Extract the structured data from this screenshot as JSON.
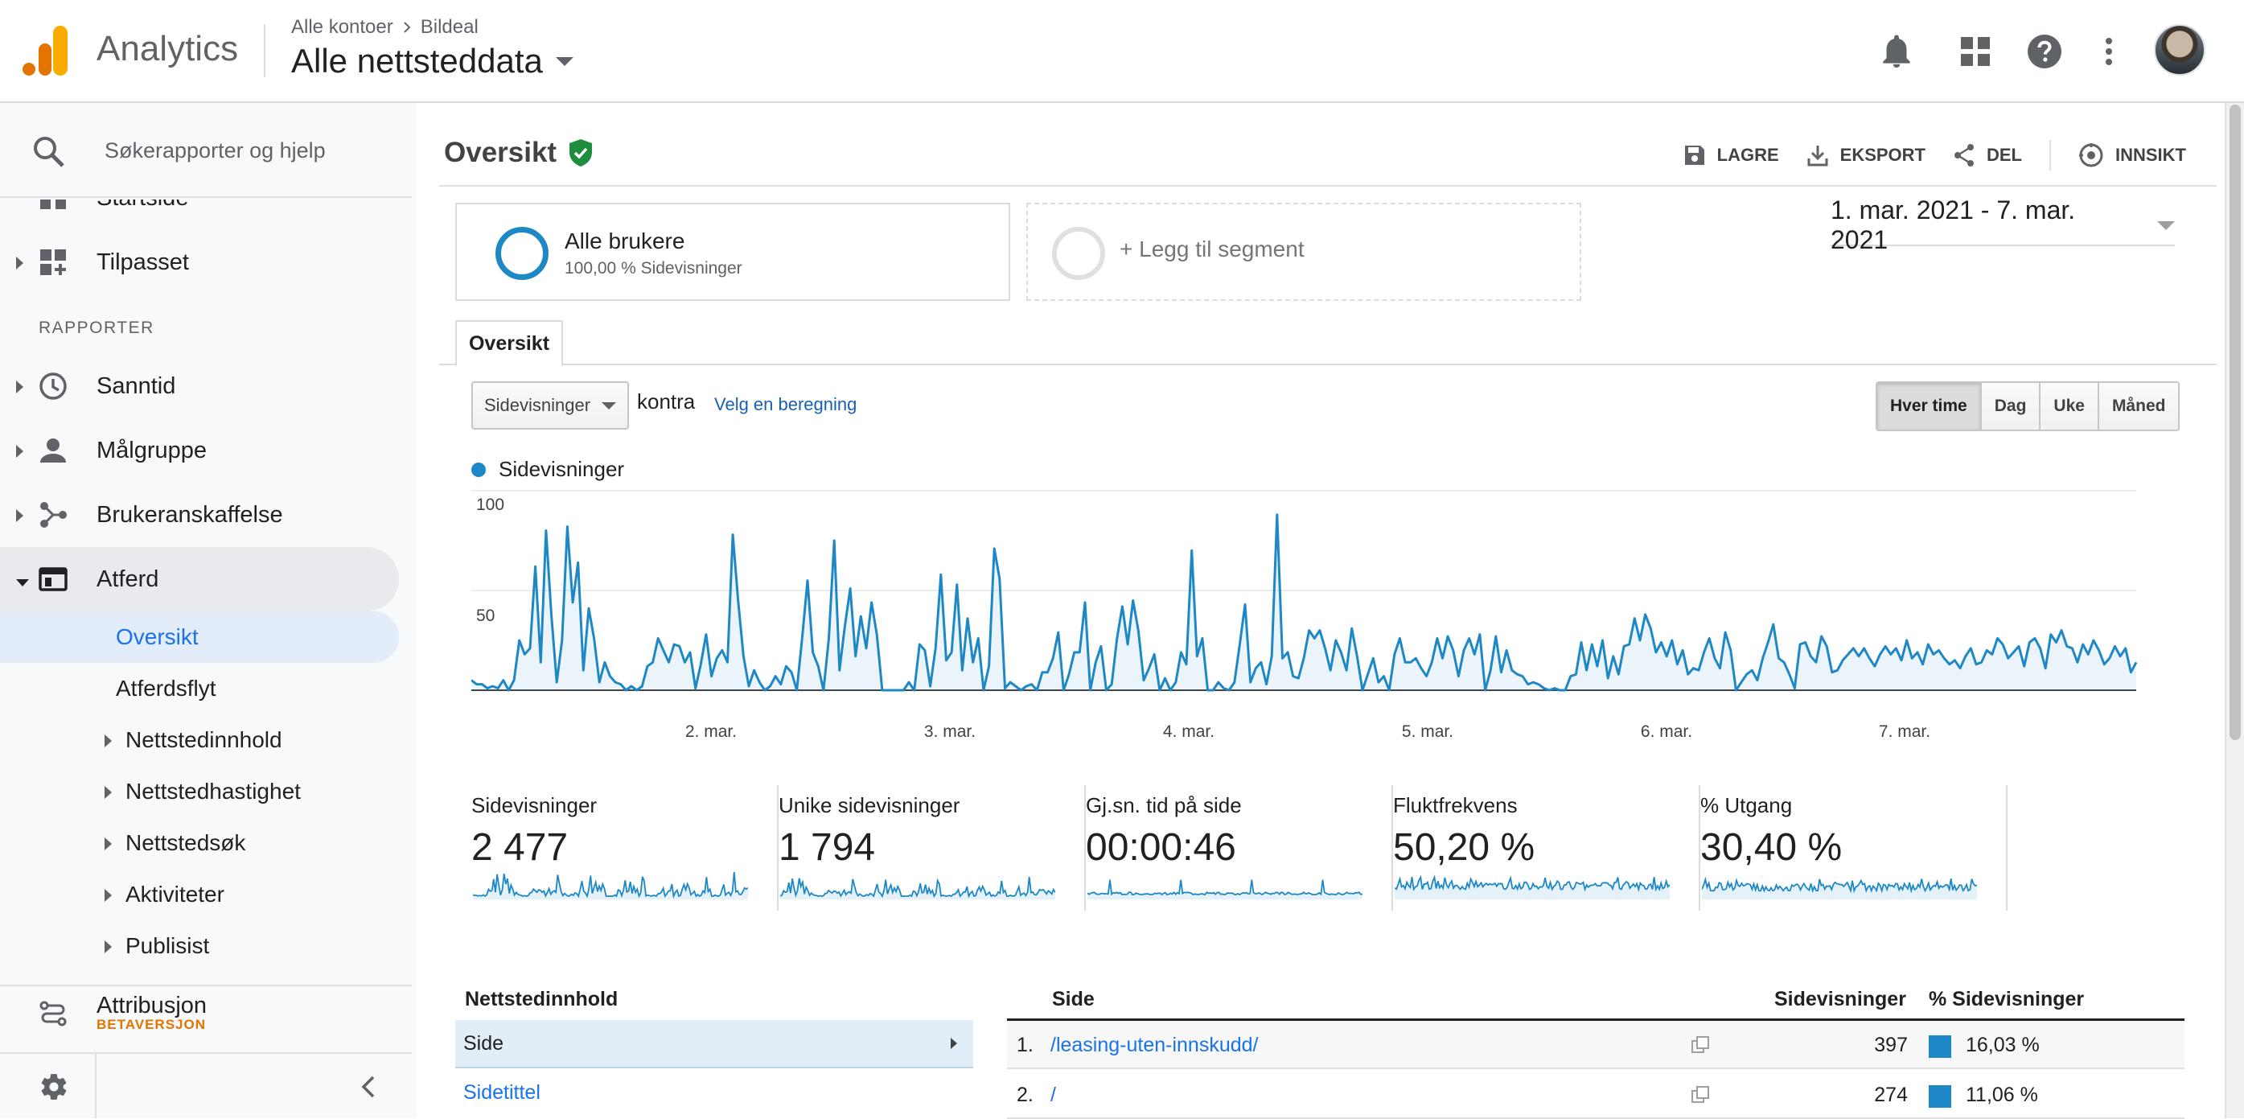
{
  "header": {
    "app_name": "Analytics",
    "breadcrumb": [
      "Alle kontoer",
      "Bildeal"
    ],
    "property": "Alle nettsteddata",
    "icons": [
      "bell-icon",
      "apps-grid-icon",
      "help-icon",
      "more-vert-icon",
      "avatar"
    ]
  },
  "sidebar": {
    "search_placeholder": "Søkerapporter og hjelp",
    "partial_top": "Startside",
    "custom": "Tilpasset",
    "reports_heading": "RAPPORTER",
    "items": [
      {
        "label": "Sanntid",
        "icon": "clock-icon"
      },
      {
        "label": "Målgruppe",
        "icon": "person-icon"
      },
      {
        "label": "Brukeranskaffelse",
        "icon": "acquisition-icon"
      },
      {
        "label": "Atferd",
        "icon": "behavior-icon"
      }
    ],
    "behavior_sub": [
      {
        "label": "Oversikt"
      },
      {
        "label": "Atferdsflyt"
      },
      {
        "label": "Nettstedinnhold"
      },
      {
        "label": "Nettstedhastighet"
      },
      {
        "label": "Nettstedsøk"
      },
      {
        "label": "Aktiviteter"
      },
      {
        "label": "Publisist"
      }
    ],
    "attribution": "Attribusjon",
    "attribution_badge": "BETAVERSJON"
  },
  "main": {
    "title": "Oversikt",
    "actions": [
      "LAGRE",
      "EKSPORT",
      "DEL",
      "INNSIKT"
    ],
    "segment": {
      "name": "Alle brukere",
      "sub": "100,00 % Sidevisninger"
    },
    "add_segment": "+ Legg til segment",
    "date_range": "1. mar. 2021 - 7. mar. 2021",
    "tab": "Oversikt",
    "metric": "Sidevisninger",
    "versus": "kontra",
    "pick_metric": "Velg en beregning",
    "granularity": [
      "Hver time",
      "Dag",
      "Uke",
      "Måned"
    ],
    "granularity_active": "Hver time",
    "legend": "Sidevisninger",
    "kpis": [
      {
        "label": "Sidevisninger",
        "value": "2 477"
      },
      {
        "label": "Unike sidevisninger",
        "value": "1 794"
      },
      {
        "label": "Gj.sn. tid på side",
        "value": "00:00:46"
      },
      {
        "label": "Fluktfrekvens",
        "value": "50,20 %"
      },
      {
        "label": "% Utgang",
        "value": "30,40 %"
      }
    ],
    "table": {
      "dim_header": "Nettstedinnhold",
      "dims": [
        "Side",
        "Sidetittel"
      ],
      "col_page": "Side",
      "col_views": "Sidevisninger",
      "col_pct": "% Sidevisninger",
      "rows": [
        {
          "num": "1.",
          "page": "/leasing-uten-innskudd/",
          "views": "397",
          "pct": "16,03 %",
          "pct_value": 16.03
        },
        {
          "num": "2.",
          "page": "/",
          "views": "274",
          "pct": "11,06 %",
          "pct_value": 11.06
        }
      ]
    }
  },
  "colors": {
    "accent": "#1e88c6",
    "link": "#1a73e8",
    "orange": "#f9ab00",
    "beta": "#e37400",
    "verified": "#1e8e3e"
  },
  "chart_data": {
    "type": "area",
    "series": [
      {
        "name": "Sidevisninger",
        "values": [
          5,
          3,
          3,
          1,
          2,
          1,
          5,
          0,
          5,
          25,
          18,
          21,
          62,
          14,
          80,
          38,
          4,
          25,
          82,
          44,
          64,
          10,
          41,
          26,
          4,
          14,
          7,
          4,
          3,
          0,
          2,
          0,
          2,
          12,
          14,
          26,
          20,
          14,
          23,
          22,
          14,
          19,
          1,
          13,
          28,
          7,
          16,
          20,
          14,
          78,
          45,
          17,
          2,
          10,
          4,
          0,
          2,
          7,
          3,
          12,
          9,
          0,
          26,
          55,
          19,
          12,
          0,
          26,
          75,
          10,
          32,
          51,
          17,
          37,
          21,
          44,
          28,
          0,
          0,
          0,
          0,
          0,
          4,
          0,
          23,
          20,
          2,
          21,
          58,
          15,
          19,
          53,
          10,
          36,
          14,
          26,
          0,
          12,
          71,
          56,
          1,
          4,
          2,
          0,
          2,
          3,
          0,
          9,
          9,
          16,
          29,
          0,
          8,
          19,
          19,
          44,
          0,
          14,
          22,
          0,
          3,
          26,
          42,
          23,
          45,
          30,
          5,
          11,
          18,
          0,
          6,
          0,
          4,
          19,
          13,
          70,
          17,
          26,
          0,
          0,
          4,
          1,
          0,
          4,
          23,
          43,
          4,
          11,
          14,
          3,
          17,
          88,
          16,
          19,
          7,
          6,
          16,
          30,
          26,
          30,
          21,
          10,
          25,
          19,
          10,
          31,
          17,
          0,
          8,
          16,
          4,
          7,
          0,
          18,
          26,
          14,
          14,
          16,
          11,
          7,
          14,
          26,
          16,
          27,
          20,
          7,
          20,
          26,
          18,
          28,
          0,
          10,
          27,
          9,
          20,
          10,
          8,
          7,
          3,
          4,
          3,
          1,
          0,
          1,
          0,
          0,
          7,
          8,
          24,
          10,
          23,
          12,
          25,
          6,
          17,
          8,
          22,
          23,
          36,
          25,
          38,
          31,
          19,
          24,
          17,
          25,
          13,
          20,
          8,
          11,
          10,
          19,
          26,
          16,
          11,
          29,
          20,
          0,
          4,
          8,
          10,
          5,
          16,
          24,
          33,
          16,
          14,
          8,
          1,
          23,
          24,
          17,
          14,
          27,
          22,
          9,
          10,
          15,
          18,
          21,
          17,
          21,
          16,
          12,
          18,
          22,
          18,
          21,
          15,
          25,
          16,
          19,
          13,
          23,
          18,
          20,
          16,
          13,
          15,
          11,
          17,
          21,
          13,
          14,
          20,
          18,
          26,
          23,
          16,
          19,
          22,
          12,
          24,
          26,
          21,
          11,
          28,
          24,
          30,
          22,
          21,
          14,
          23,
          18,
          25,
          20,
          13,
          16,
          22,
          17,
          21,
          9,
          14
        ]
      }
    ],
    "x_tick_labels": [
      "2. mar.",
      "3. mar.",
      "4. mar.",
      "5. mar.",
      "6. mar.",
      "7. mar."
    ],
    "y_tick_labels": [
      "100",
      "50"
    ],
    "ylim": [
      0,
      100
    ],
    "grid": true
  }
}
